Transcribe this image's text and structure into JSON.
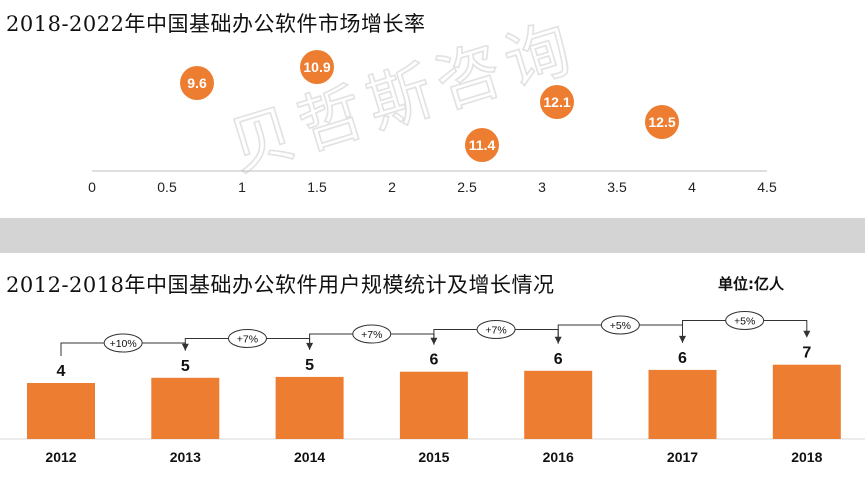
{
  "charts": {
    "top": {
      "title": "2018-2022年中国基础办公软件市场增长率"
    },
    "bottom": {
      "title": "2012-2018年中国基础办公软件用户规模统计及增长情况",
      "unit_label": "单位:亿人"
    }
  },
  "watermark": "贝哲斯咨询",
  "colors": {
    "orange": "#ED7D31",
    "axis": "#bfbfbf",
    "divider": "#d4d4d4",
    "watermark": "#e2e2e2"
  },
  "chart_data": [
    {
      "type": "scatter",
      "title": "2018-2022年中国基础办公软件市场增长率",
      "x_ticks": [
        "0",
        "0.5",
        "1",
        "1.5",
        "2",
        "2.5",
        "3",
        "3.5",
        "4",
        "4.5"
      ],
      "xlim": [
        0,
        4.5
      ],
      "grid": false,
      "points": [
        {
          "x": 0.7,
          "label": "9.6"
        },
        {
          "x": 1.5,
          "label": "10.9"
        },
        {
          "x": 2.6,
          "label": "11.4"
        },
        {
          "x": 3.1,
          "label": "12.1"
        },
        {
          "x": 3.8,
          "label": "12.5"
        }
      ]
    },
    {
      "type": "bar",
      "title": "2012-2018年中国基础办公软件用户规模统计及增长情况",
      "unit": "单位:亿人",
      "categories": [
        "2012",
        "2013",
        "2014",
        "2015",
        "2016",
        "2017",
        "2018"
      ],
      "values": [
        4,
        5,
        5,
        6,
        6,
        6,
        7
      ],
      "growth": [
        "+10%",
        "+7%",
        "+7%",
        "+7%",
        "+5%",
        "+5%"
      ]
    }
  ]
}
